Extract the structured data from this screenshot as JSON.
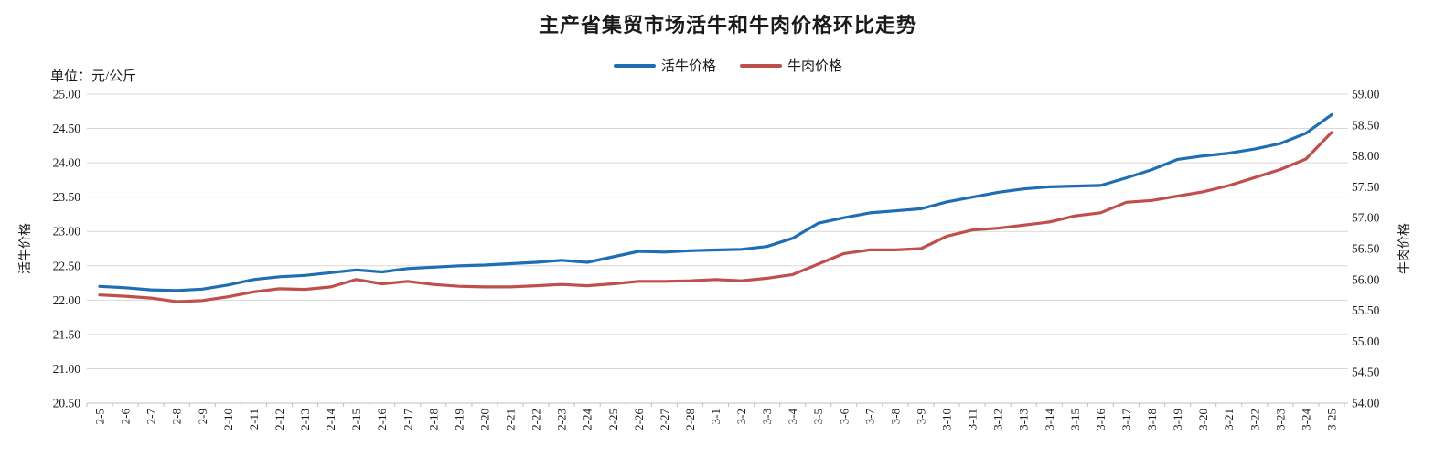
{
  "title": "主产省集贸市场活牛和牛肉价格环比走势",
  "unit_label": "单位：元/公斤",
  "legend": [
    {
      "label": "活牛价格",
      "color": "#1f6eb4"
    },
    {
      "label": "牛肉价格",
      "color": "#bf4f4c"
    }
  ],
  "colors": {
    "live_cattle_line": "#1f6eb4",
    "beef_line": "#bf4f4c",
    "gridline": "#d9d9d9",
    "axis_line": "#bfbfbf",
    "text": "#1a1a1a"
  },
  "left_axis": {
    "title": "活牛价格",
    "min": 20.5,
    "max": 25.0,
    "step": 0.5,
    "labels": [
      "25.00",
      "24.50",
      "24.00",
      "23.50",
      "23.00",
      "22.50",
      "22.00",
      "21.50",
      "21.00",
      "20.50"
    ]
  },
  "right_axis": {
    "title": "牛肉价格",
    "min": 54.0,
    "max": 59.0,
    "step": 0.5,
    "labels": [
      "59.00",
      "58.50",
      "58.00",
      "57.50",
      "57.00",
      "56.50",
      "56.00",
      "55.50",
      "55.00",
      "54.50",
      "54.00"
    ]
  },
  "chart_data": {
    "type": "line",
    "title": "主产省集贸市场活牛和牛肉价格环比走势",
    "xlabel": "",
    "ylabel_left": "活牛价格",
    "ylabel_right": "牛肉价格",
    "unit": "元/公斤",
    "grid": true,
    "legend_position": "top",
    "left_ylim": [
      20.5,
      25.0
    ],
    "right_ylim": [
      54.0,
      59.0
    ],
    "categories": [
      "2-5",
      "2-6",
      "2-7",
      "2-8",
      "2-9",
      "2-10",
      "2-11",
      "2-12",
      "2-13",
      "2-14",
      "2-15",
      "2-16",
      "2-17",
      "2-18",
      "2-19",
      "2-20",
      "2-21",
      "2-22",
      "2-23",
      "2-24",
      "2-25",
      "2-26",
      "2-27",
      "2-28",
      "3-1",
      "3-2",
      "3-3",
      "3-4",
      "3-5",
      "3-6",
      "3-7",
      "3-8",
      "3-9",
      "3-10",
      "3-11",
      "3-12",
      "3-13",
      "3-14",
      "3-15",
      "3-16",
      "3-17",
      "3-18",
      "3-19",
      "3-20",
      "3-21",
      "3-22",
      "3-23",
      "3-24",
      "3-25"
    ],
    "series": [
      {
        "name": "活牛价格",
        "axis": "left",
        "color": "#1f6eb4",
        "values": [
          22.2,
          22.18,
          22.15,
          22.14,
          22.16,
          22.22,
          22.3,
          22.34,
          22.36,
          22.4,
          22.44,
          22.41,
          22.46,
          22.48,
          22.5,
          22.51,
          22.53,
          22.55,
          22.58,
          22.55,
          22.63,
          22.71,
          22.7,
          22.72,
          22.73,
          22.74,
          22.78,
          22.9,
          23.12,
          23.2,
          23.27,
          23.3,
          23.33,
          23.43,
          23.5,
          23.57,
          23.62,
          23.65,
          23.66,
          23.67,
          23.78,
          23.9,
          24.05,
          24.1,
          24.14,
          24.2,
          24.28,
          24.43,
          24.7
        ]
      },
      {
        "name": "牛肉价格",
        "axis": "right",
        "color": "#bf4f4c",
        "values": [
          55.75,
          55.73,
          55.7,
          55.64,
          55.66,
          55.72,
          55.8,
          55.85,
          55.84,
          55.88,
          56.0,
          55.93,
          55.97,
          55.92,
          55.89,
          55.88,
          55.88,
          55.9,
          55.92,
          55.9,
          55.93,
          55.97,
          55.97,
          55.98,
          56.0,
          55.98,
          56.02,
          56.08,
          56.25,
          56.42,
          56.48,
          56.48,
          56.5,
          56.7,
          56.8,
          56.83,
          56.88,
          56.93,
          57.03,
          57.08,
          57.25,
          57.28,
          57.35,
          57.42,
          57.52,
          57.65,
          57.78,
          57.95,
          58.38
        ]
      }
    ]
  }
}
